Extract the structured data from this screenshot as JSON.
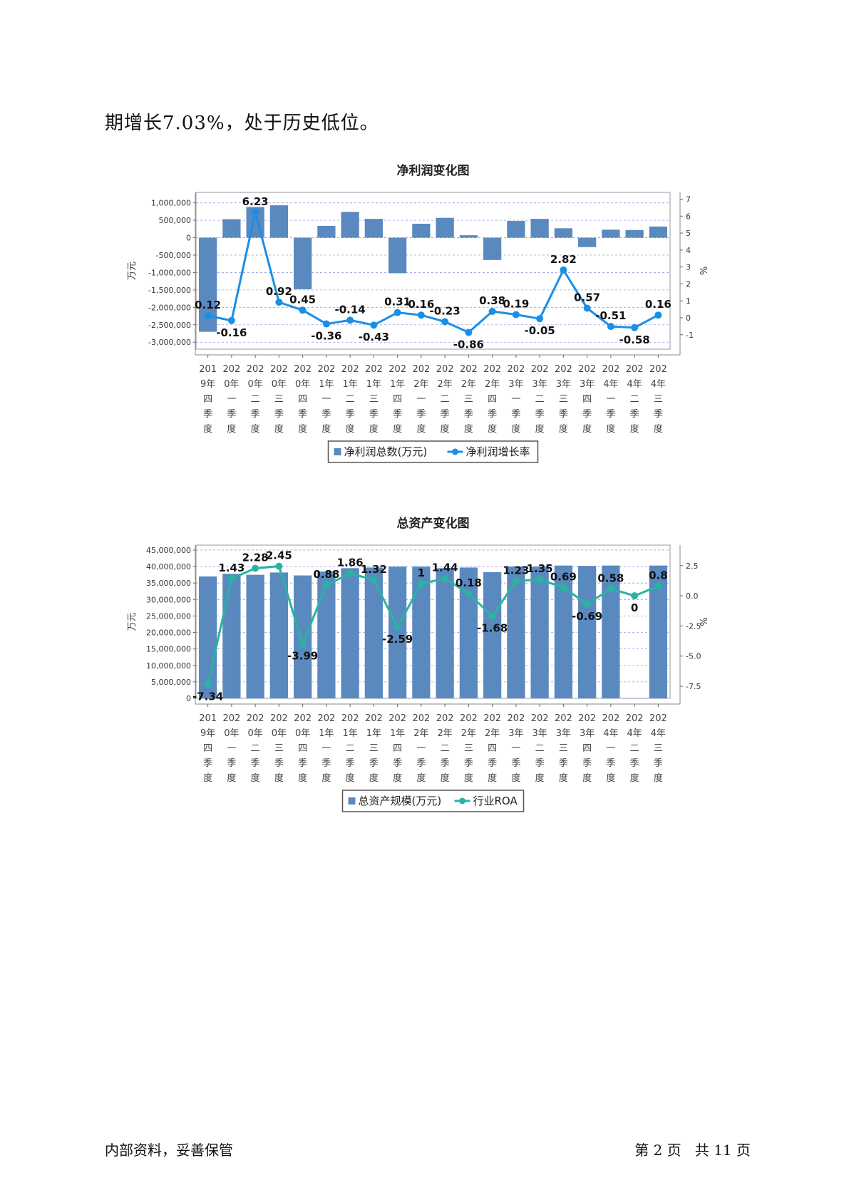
{
  "intro_text": "期增长7.03%，处于历史低位。",
  "footer": {
    "left": "内部资料，妥善保管",
    "page_prefix": "第",
    "page_num": "2",
    "page_mid": "页   共",
    "page_total": "11",
    "page_suffix": "页"
  },
  "colors": {
    "bar": "#5a89bf",
    "line1": "#1a8fe6",
    "line2": "#2ab3a3",
    "grid": "#9a9ae6"
  },
  "chart_data": [
    {
      "type": "bar",
      "title": "净利润变化图",
      "ylabel": "万元",
      "y2label": "%",
      "ylim": [
        -3200000,
        1300000
      ],
      "yticks": [
        1000000,
        500000,
        0,
        -500000,
        -1000000,
        -1500000,
        -2000000,
        -2500000,
        -3000000
      ],
      "ytick_labels": [
        "1,000,000",
        "500,000",
        "0",
        "-500,000",
        "-1,000,000",
        "-1,500,000",
        "-2,000,000",
        "-2,500,000",
        "-3,000,000"
      ],
      "y2lim": [
        -1.85,
        7.4
      ],
      "y2ticks": [
        7,
        6,
        5,
        4,
        3,
        2,
        1,
        0,
        -1
      ],
      "y2tick_labels": [
        "7",
        "6",
        "5",
        "4",
        "3",
        "2",
        "1",
        "0",
        "-1"
      ],
      "categories": [
        [
          "201",
          "9年",
          "四",
          "季",
          "度"
        ],
        [
          "202",
          "0年",
          "一",
          "季",
          "度"
        ],
        [
          "202",
          "0年",
          "二",
          "季",
          "度"
        ],
        [
          "202",
          "0年",
          "三",
          "季",
          "度"
        ],
        [
          "202",
          "0年",
          "四",
          "季",
          "度"
        ],
        [
          "202",
          "1年",
          "一",
          "季",
          "度"
        ],
        [
          "202",
          "1年",
          "二",
          "季",
          "度"
        ],
        [
          "202",
          "1年",
          "三",
          "季",
          "度"
        ],
        [
          "202",
          "1年",
          "四",
          "季",
          "度"
        ],
        [
          "202",
          "2年",
          "一",
          "季",
          "度"
        ],
        [
          "202",
          "2年",
          "二",
          "季",
          "度"
        ],
        [
          "202",
          "2年",
          "三",
          "季",
          "度"
        ],
        [
          "202",
          "2年",
          "四",
          "季",
          "度"
        ],
        [
          "202",
          "3年",
          "一",
          "季",
          "度"
        ],
        [
          "202",
          "3年",
          "二",
          "季",
          "度"
        ],
        [
          "202",
          "3年",
          "三",
          "季",
          "度"
        ],
        [
          "202",
          "3年",
          "四",
          "季",
          "度"
        ],
        [
          "202",
          "4年",
          "一",
          "季",
          "度"
        ],
        [
          "202",
          "4年",
          "二",
          "季",
          "度"
        ],
        [
          "202",
          "4年",
          "三",
          "季",
          "度"
        ]
      ],
      "series": [
        {
          "name": "净利润总数(万元)",
          "kind": "bar",
          "values": [
            -2700000,
            530000,
            880000,
            930000,
            -1480000,
            340000,
            740000,
            540000,
            -1020000,
            400000,
            570000,
            70000,
            -640000,
            480000,
            540000,
            270000,
            -270000,
            230000,
            220000,
            320000
          ]
        },
        {
          "name": "净利润增长率",
          "kind": "line",
          "axis": "right",
          "values": [
            0.12,
            -0.16,
            6.23,
            0.92,
            0.45,
            -0.36,
            -0.14,
            -0.43,
            0.31,
            0.16,
            -0.23,
            -0.86,
            0.38,
            0.19,
            -0.05,
            2.82,
            0.57,
            -0.51,
            -0.58,
            0.16
          ],
          "labels": [
            "0.12",
            "-0.16",
            "6.23",
            "0.92",
            "0.45",
            "-0.36",
            "-0.14",
            "-0.43",
            "0.31",
            "0.16",
            "-0.23",
            "-0.86",
            "0.38",
            "0.19",
            "-0.05",
            "2.82",
            "0.57",
            "-0.51",
            "-0.58",
            "0.16"
          ]
        }
      ],
      "legend": "bottom",
      "grid": true
    },
    {
      "type": "bar",
      "title": "总资产变化图",
      "ylabel": "万元",
      "y2label": "%",
      "ylim": [
        0,
        46500000
      ],
      "yticks": [
        45000000,
        40000000,
        35000000,
        30000000,
        25000000,
        20000000,
        15000000,
        10000000,
        5000000,
        0
      ],
      "ytick_labels": [
        "45,000,000",
        "40,000,000",
        "35,000,000",
        "30,000,000",
        "25,000,000",
        "20,000,000",
        "15,000,000",
        "10,000,000",
        "5,000,000",
        "0"
      ],
      "y2lim": [
        -8.5,
        4.2
      ],
      "y2ticks": [
        2.5,
        0,
        -2.5,
        -5,
        -7.5
      ],
      "y2tick_labels": [
        "2.5",
        "0.0",
        "-2.5",
        "-5.0",
        "-7.5"
      ],
      "categories": [
        [
          "201",
          "9年",
          "四",
          "季",
          "度"
        ],
        [
          "202",
          "0年",
          "一",
          "季",
          "度"
        ],
        [
          "202",
          "0年",
          "二",
          "季",
          "度"
        ],
        [
          "202",
          "0年",
          "三",
          "季",
          "度"
        ],
        [
          "202",
          "0年",
          "四",
          "季",
          "度"
        ],
        [
          "202",
          "1年",
          "一",
          "季",
          "度"
        ],
        [
          "202",
          "1年",
          "二",
          "季",
          "度"
        ],
        [
          "202",
          "1年",
          "三",
          "季",
          "度"
        ],
        [
          "202",
          "1年",
          "四",
          "季",
          "度"
        ],
        [
          "202",
          "2年",
          "一",
          "季",
          "度"
        ],
        [
          "202",
          "2年",
          "二",
          "季",
          "度"
        ],
        [
          "202",
          "2年",
          "三",
          "季",
          "度"
        ],
        [
          "202",
          "2年",
          "四",
          "季",
          "度"
        ],
        [
          "202",
          "3年",
          "一",
          "季",
          "度"
        ],
        [
          "202",
          "3年",
          "二",
          "季",
          "度"
        ],
        [
          "202",
          "3年",
          "三",
          "季",
          "度"
        ],
        [
          "202",
          "3年",
          "四",
          "季",
          "度"
        ],
        [
          "202",
          "4年",
          "一",
          "季",
          "度"
        ],
        [
          "202",
          "4年",
          "二",
          "季",
          "度"
        ],
        [
          "202",
          "4年",
          "三",
          "季",
          "度"
        ]
      ],
      "series": [
        {
          "name": "总资产规模(万元)",
          "kind": "bar",
          "values": [
            37000000,
            37800000,
            37500000,
            38200000,
            37300000,
            38500000,
            39500000,
            39700000,
            40000000,
            40000000,
            39500000,
            39700000,
            38300000,
            40000000,
            40000000,
            40300000,
            40200000,
            40300000,
            0,
            40300000
          ]
        },
        {
          "name": "行业ROA",
          "kind": "line",
          "axis": "right",
          "values": [
            -7.34,
            1.43,
            2.28,
            2.45,
            -3.99,
            0.88,
            1.86,
            1.32,
            -2.59,
            1,
            1.44,
            0.18,
            -1.68,
            1.23,
            1.35,
            0.69,
            -0.69,
            0.58,
            0,
            0.8
          ],
          "labels": [
            "-7.34",
            "1.43",
            "2.28",
            "2.45",
            "-3.99",
            "0.88",
            "1.86",
            "1.32",
            "-2.59",
            "1",
            "1.44",
            "0.18",
            "-1.68",
            "1.23",
            "1.35",
            "0.69",
            "-0.69",
            "0.58",
            "0",
            "0.8"
          ]
        }
      ],
      "legend": "bottom",
      "grid": true
    }
  ]
}
